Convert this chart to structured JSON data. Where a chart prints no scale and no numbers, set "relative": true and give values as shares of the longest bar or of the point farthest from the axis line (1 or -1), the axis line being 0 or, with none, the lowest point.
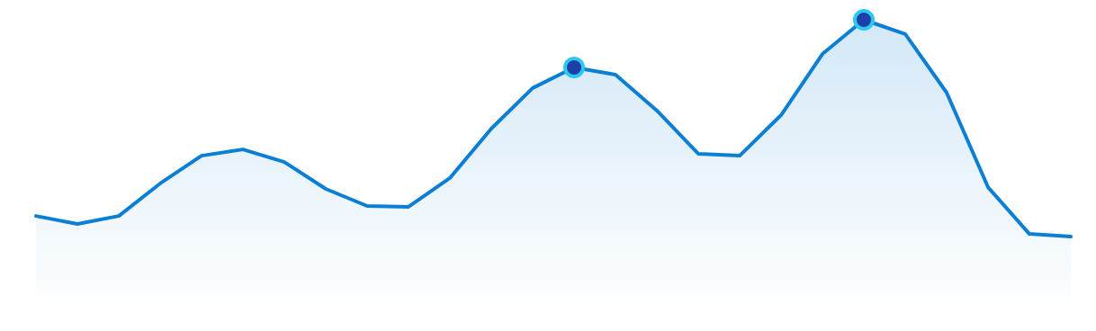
{
  "chart_data": {
    "type": "area",
    "relative": true,
    "categories": [
      null,
      null,
      null,
      null,
      null,
      null,
      null,
      null,
      null,
      null,
      null,
      null,
      null,
      null,
      null,
      null,
      null,
      null,
      null,
      null,
      null,
      null,
      null,
      null,
      null,
      null
    ],
    "series": [
      {
        "color": "#0a7fd4",
        "values": [
          0.095,
          0.058,
          0.095,
          0.245,
          0.373,
          0.402,
          0.344,
          0.22,
          0.141,
          0.137,
          0.27,
          0.498,
          0.685,
          0.78,
          0.747,
          0.581,
          0.382,
          0.373,
          0.56,
          0.842,
          1,
          0.934,
          0.664,
          0.228,
          0.012,
          0
        ]
      }
    ]
  }
}
